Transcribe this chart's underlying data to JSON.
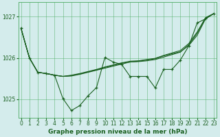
{
  "title": "Graphe pression niveau de la mer (hPa)",
  "bg_color": "#d4ecec",
  "grid_color": "#4aaa60",
  "line_color": "#1a6020",
  "xlim": [
    -0.3,
    23.3
  ],
  "ylim": [
    1024.55,
    1027.35
  ],
  "yticks": [
    1025,
    1026,
    1027
  ],
  "xticks": [
    0,
    1,
    2,
    3,
    4,
    5,
    6,
    7,
    8,
    9,
    10,
    11,
    12,
    13,
    14,
    15,
    16,
    17,
    18,
    19,
    20,
    21,
    22,
    23
  ],
  "y_zigzag": [
    1026.72,
    1026.0,
    1025.65,
    1025.62,
    1025.58,
    1025.01,
    1024.72,
    1024.84,
    1025.08,
    1025.28,
    1026.01,
    1025.9,
    1025.84,
    1025.55,
    1025.55,
    1025.55,
    1025.27,
    1025.72,
    1025.72,
    1025.95,
    1026.29,
    1026.85,
    1026.95,
    1027.08
  ],
  "y_line1": [
    1026.72,
    1026.0,
    1025.65,
    1025.62,
    1025.58,
    1025.55,
    1025.56,
    1025.6,
    1025.65,
    1025.7,
    1025.75,
    1025.8,
    1025.85,
    1025.9,
    1025.92,
    1025.95,
    1025.98,
    1026.05,
    1026.1,
    1026.15,
    1026.3,
    1026.55,
    1026.95,
    1027.08
  ],
  "y_line2": [
    1026.72,
    1026.0,
    1025.65,
    1025.62,
    1025.58,
    1025.55,
    1025.57,
    1025.61,
    1025.66,
    1025.71,
    1025.77,
    1025.82,
    1025.87,
    1025.9,
    1025.91,
    1025.93,
    1025.96,
    1026.02,
    1026.08,
    1026.14,
    1026.32,
    1026.6,
    1026.97,
    1027.08
  ],
  "y_line3": [
    1026.72,
    1026.0,
    1025.65,
    1025.62,
    1025.58,
    1025.55,
    1025.58,
    1025.62,
    1025.67,
    1025.72,
    1025.78,
    1025.83,
    1025.88,
    1025.92,
    1025.93,
    1025.96,
    1025.99,
    1026.06,
    1026.12,
    1026.18,
    1026.35,
    1026.63,
    1026.98,
    1027.08
  ]
}
